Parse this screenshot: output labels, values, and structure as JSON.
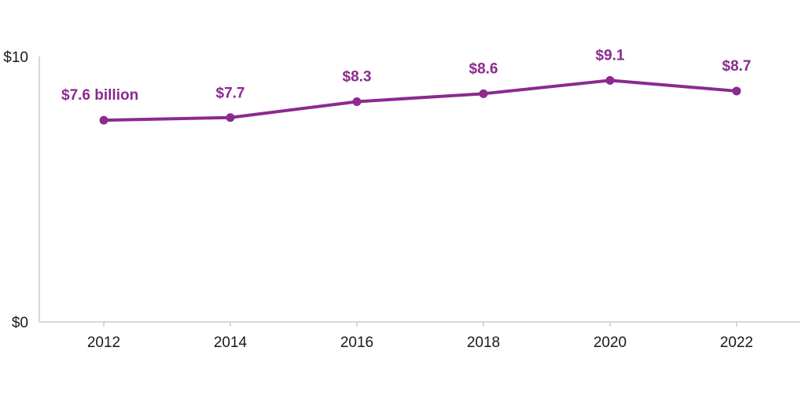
{
  "chart_data": {
    "type": "line",
    "x": [
      "2012",
      "2014",
      "2016",
      "2018",
      "2020",
      "2022"
    ],
    "series": [
      {
        "values": [
          7.6,
          7.7,
          8.3,
          8.6,
          9.1,
          8.7
        ]
      }
    ],
    "data_labels": [
      "$7.6 billion",
      "$7.7",
      "$8.3",
      "$8.6",
      "$9.1",
      "$8.7"
    ],
    "y_ticks": [
      {
        "value": 0,
        "label": "$0"
      },
      {
        "value": 10,
        "label": "$10"
      }
    ],
    "ylim": [
      0,
      10
    ],
    "title": "",
    "xlabel": "",
    "ylabel": "",
    "grid": false,
    "legend": "none",
    "colors": {
      "series": "#8b2a8f",
      "axis": "#cccccc",
      "text": "#1a1a1a"
    }
  }
}
